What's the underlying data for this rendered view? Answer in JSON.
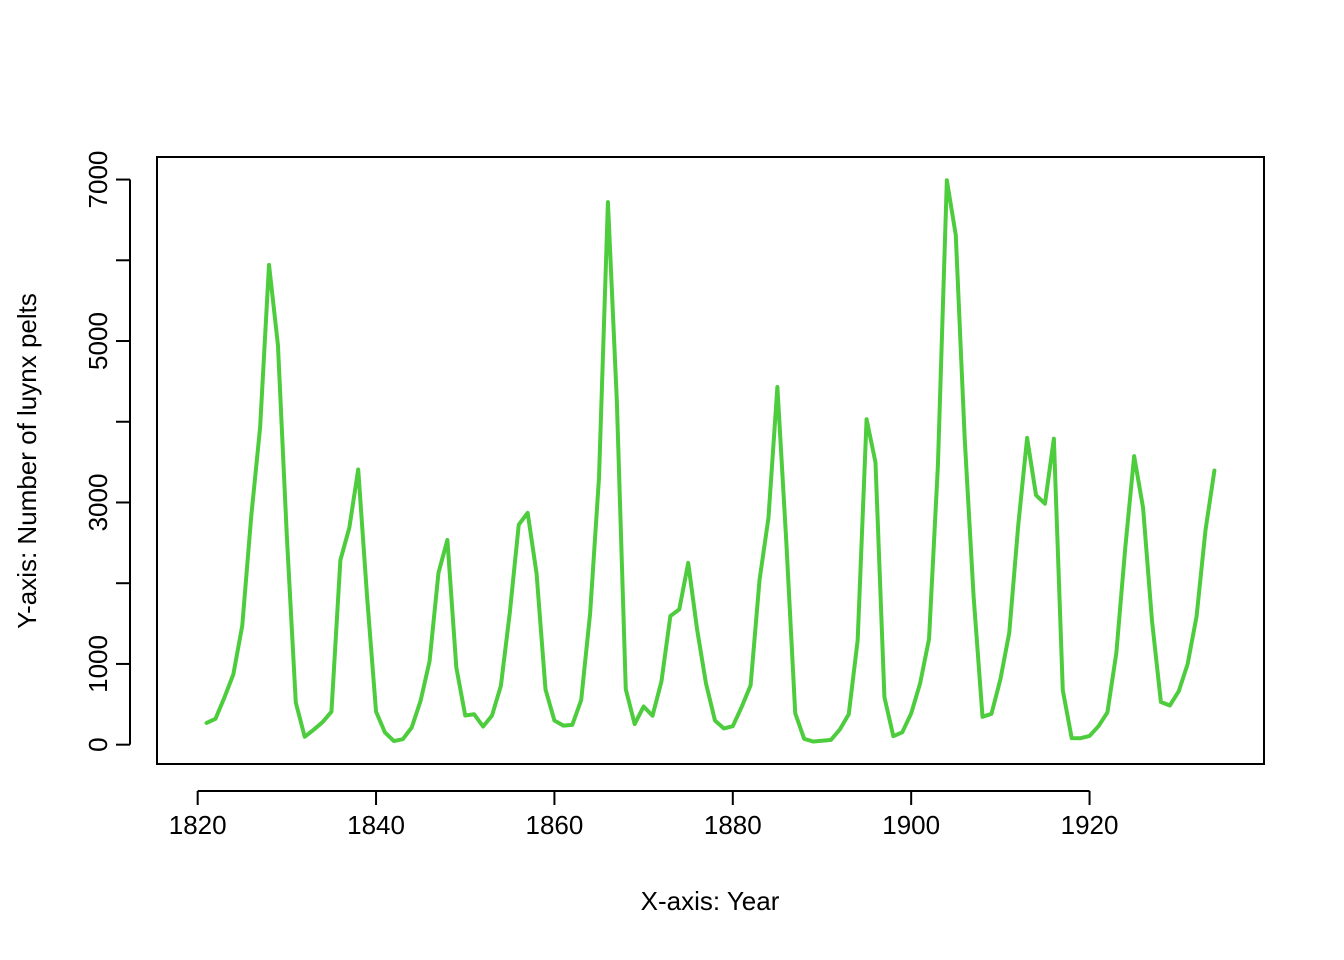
{
  "chart_data": {
    "type": "line",
    "title": "",
    "xlabel": "X-axis: Year",
    "ylabel": "Y-axis: Number of luynx pelts",
    "xlim": [
      1815.44,
      1939.56
    ],
    "ylim": [
      -239.4,
      7279.4
    ],
    "x_ticks": [
      1820,
      1840,
      1860,
      1880,
      1900,
      1920
    ],
    "y_ticks": [
      0,
      1000,
      3000,
      5000,
      7000
    ],
    "y_minor_ticks": [
      2000,
      4000,
      6000
    ],
    "grid": false,
    "legend": "none",
    "color": "#4DCC3D",
    "series": [
      {
        "x": [
          1821,
          1822,
          1823,
          1824,
          1825,
          1826,
          1827,
          1828,
          1829,
          1830,
          1831,
          1832,
          1833,
          1834,
          1835,
          1836,
          1837,
          1838,
          1839,
          1840,
          1841,
          1842,
          1843,
          1844,
          1845,
          1846,
          1847,
          1848,
          1849,
          1850,
          1851,
          1852,
          1853,
          1854,
          1855,
          1856,
          1857,
          1858,
          1859,
          1860,
          1861,
          1862,
          1863,
          1864,
          1865,
          1866,
          1867,
          1868,
          1869,
          1870,
          1871,
          1872,
          1873,
          1874,
          1875,
          1876,
          1877,
          1878,
          1879,
          1880,
          1881,
          1882,
          1883,
          1884,
          1885,
          1886,
          1887,
          1888,
          1889,
          1890,
          1891,
          1892,
          1893,
          1894,
          1895,
          1896,
          1897,
          1898,
          1899,
          1900,
          1901,
          1902,
          1903,
          1904,
          1905,
          1906,
          1907,
          1908,
          1909,
          1910,
          1911,
          1912,
          1913,
          1914,
          1915,
          1916,
          1917,
          1918,
          1919,
          1920,
          1921,
          1922,
          1923,
          1924,
          1925,
          1926,
          1927,
          1928,
          1929,
          1930,
          1931,
          1932,
          1933,
          1934
        ],
        "values": [
          269,
          321,
          585,
          871,
          1475,
          2821,
          3928,
          5943,
          4950,
          2577,
          523,
          98,
          184,
          279,
          409,
          2285,
          2685,
          3409,
          1824,
          409,
          151,
          45,
          68,
          213,
          546,
          1033,
          2129,
          2536,
          957,
          361,
          377,
          225,
          360,
          731,
          1638,
          2725,
          2871,
          2119,
          684,
          299,
          236,
          245,
          552,
          1623,
          3311,
          6721,
          4254,
          687,
          255,
          473,
          358,
          784,
          1594,
          1676,
          2251,
          1426,
          756,
          299,
          201,
          229,
          469,
          736,
          2042,
          2811,
          4431,
          2511,
          389,
          73,
          39,
          49,
          59,
          188,
          377,
          1292,
          4031,
          3495,
          587,
          105,
          153,
          387,
          758,
          1307,
          3465,
          6991,
          6313,
          3794,
          1836,
          345,
          382,
          808,
          1388,
          2713,
          3800,
          3091,
          2985,
          3790,
          674,
          81,
          80,
          108,
          229,
          399,
          1132,
          2432,
          3574,
          2935,
          1537,
          529,
          485,
          662,
          1000,
          1590,
          2657,
          3396
        ]
      }
    ]
  }
}
